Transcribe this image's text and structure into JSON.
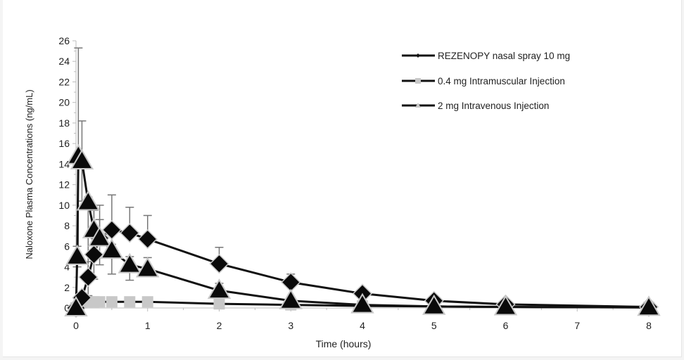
{
  "chart_data": {
    "type": "line",
    "title": "",
    "xlabel": "Time (hours)",
    "ylabel": "Naloxone Plasma Concentrations (ng/mL)",
    "xlim": [
      0,
      8
    ],
    "ylim": [
      0,
      26
    ],
    "x_ticks": [
      0,
      1,
      2,
      3,
      4,
      5,
      6,
      7,
      8
    ],
    "y_ticks": [
      0,
      2,
      4,
      6,
      8,
      10,
      12,
      14,
      16,
      18,
      20,
      22,
      24,
      26
    ],
    "grid": false,
    "legend_position": "upper right",
    "series": [
      {
        "name": "REZENOPY nasal spray 10 mg",
        "marker": "diamond",
        "x": [
          0,
          0.083,
          0.17,
          0.25,
          0.33,
          0.5,
          0.75,
          1,
          2,
          3,
          4,
          5,
          6,
          8
        ],
        "values": [
          0,
          1.0,
          3.0,
          5.2,
          6.8,
          7.6,
          7.3,
          6.7,
          4.3,
          2.5,
          1.4,
          0.7,
          0.35,
          0.1
        ],
        "error_upper": [
          0,
          1.5,
          4.5,
          9.5,
          10.0,
          11.0,
          9.8,
          9.0,
          5.9,
          3.3,
          1.8,
          0.9,
          0.45,
          0.15
        ]
      },
      {
        "name": "0.4 mg Intramuscular Injection",
        "marker": "square",
        "x": [
          0,
          0.083,
          0.17,
          0.25,
          0.33,
          0.5,
          0.75,
          1,
          2,
          3,
          4,
          5,
          6,
          8
        ],
        "values": [
          0,
          0.5,
          0.6,
          0.6,
          0.6,
          0.6,
          0.6,
          0.6,
          0.4,
          0.3,
          0.2,
          0.15,
          0.1,
          0.05
        ],
        "error_upper": [
          0,
          0.7,
          0.8,
          0.8,
          0.8,
          0.8,
          0.8,
          0.8,
          0.6,
          0.4,
          0.3,
          0.2,
          0.15,
          0.08
        ]
      },
      {
        "name": "2 mg Intravenous Injection",
        "marker": "triangle",
        "x": [
          0,
          0.017,
          0.033,
          0.083,
          0.17,
          0.25,
          0.33,
          0.5,
          0.75,
          1,
          2,
          3,
          4,
          5,
          6,
          8
        ],
        "values": [
          0,
          5.0,
          14.8,
          14.3,
          10.3,
          7.6,
          6.8,
          5.6,
          4.2,
          3.8,
          1.7,
          0.7,
          0.3,
          0.15,
          0.1,
          0.05
        ],
        "error_upper": [
          0,
          6.0,
          25.3,
          18.2,
          10.8,
          9.5,
          8.6,
          6.2,
          5.0,
          4.9,
          2.4,
          1.0,
          0.4,
          0.2,
          0.15,
          0.08
        ],
        "error_lower": [
          0,
          4.0,
          4.3,
          10.4,
          1.2,
          2.8,
          4.2,
          3.3,
          2.7,
          3.4,
          1.2,
          0.5,
          0.2,
          0.1,
          0.05,
          0.03
        ]
      }
    ]
  },
  "legend": {
    "items": [
      {
        "label": "REZENOPY nasal spray 10 mg"
      },
      {
        "label": "0.4 mg Intramuscular Injection"
      },
      {
        "label": "2 mg Intravenous Injection"
      }
    ]
  },
  "colors": {
    "line": "#111111",
    "marker_dark": "#0a0a0a",
    "marker_light": "#c8c8c8",
    "error_bar": "#777777",
    "axis": "#bdbdbd"
  }
}
